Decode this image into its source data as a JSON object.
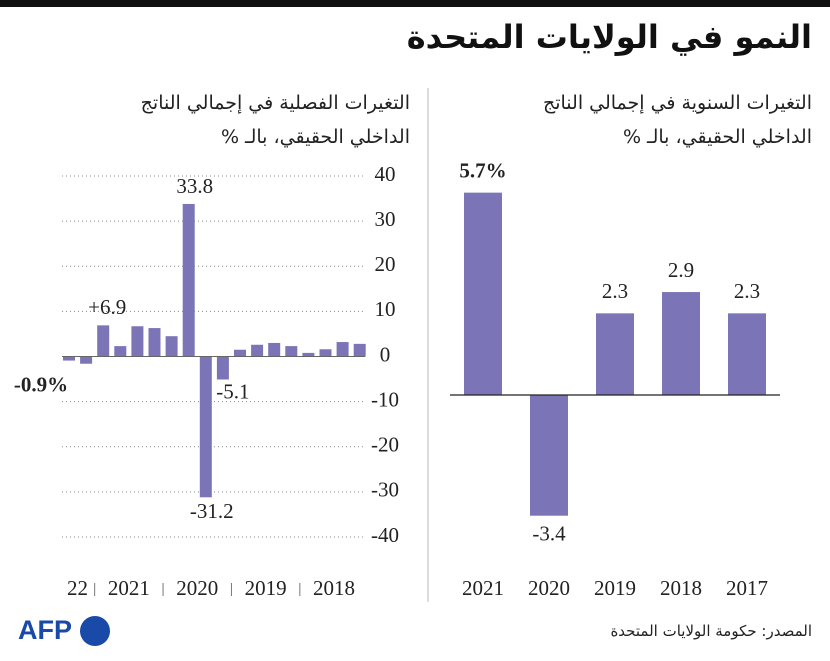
{
  "title": "النمو في الولايات المتحدة",
  "source": "المصدر: حكومة الولايات المتحدة",
  "logo": "AFP",
  "chart_data": [
    {
      "type": "bar",
      "subtitle": [
        "التغيرات الفصلية في إجمالي الناتج",
        "الداخلي الحقيقي، بالـ %"
      ],
      "categories": [
        null,
        null,
        null,
        null,
        null,
        null,
        null,
        null,
        null,
        null,
        null,
        null,
        null,
        null,
        null,
        null,
        null,
        null
      ],
      "values": [
        -0.9,
        -1.6,
        6.9,
        2.3,
        6.7,
        6.3,
        4.5,
        33.8,
        -31.2,
        -5.1,
        1.5,
        2.6,
        3.0,
        2.3,
        0.8,
        1.6,
        3.2,
        2.8
      ],
      "value_labels": [
        "-0.9%",
        null,
        "+6.9",
        null,
        null,
        null,
        null,
        "33.8",
        "-31.2",
        "-5.1",
        null,
        null,
        null,
        null,
        null,
        null,
        null,
        null
      ],
      "year_labels": [
        "22",
        "2021",
        "2020",
        "2019",
        "2018"
      ],
      "year_groups": [
        2,
        4,
        4,
        4,
        4
      ],
      "color": "#7b74b6",
      "ylim": [
        -40,
        40
      ],
      "yticks": [
        40,
        30,
        20,
        10,
        0,
        -10,
        -20,
        -30,
        -40
      ],
      "grid": true
    },
    {
      "type": "bar",
      "subtitle": [
        "التغيرات السنوية في إجمالي الناتج",
        "الداخلي الحقيقي، بالـ %"
      ],
      "categories": [
        "2021",
        "2020",
        "2019",
        "2018",
        "2017"
      ],
      "values": [
        5.7,
        -3.4,
        2.3,
        2.9,
        2.3
      ],
      "value_labels": [
        "5.7%",
        "-3.4",
        "2.3",
        "2.9",
        "2.3"
      ],
      "color": "#7b74b6"
    }
  ]
}
